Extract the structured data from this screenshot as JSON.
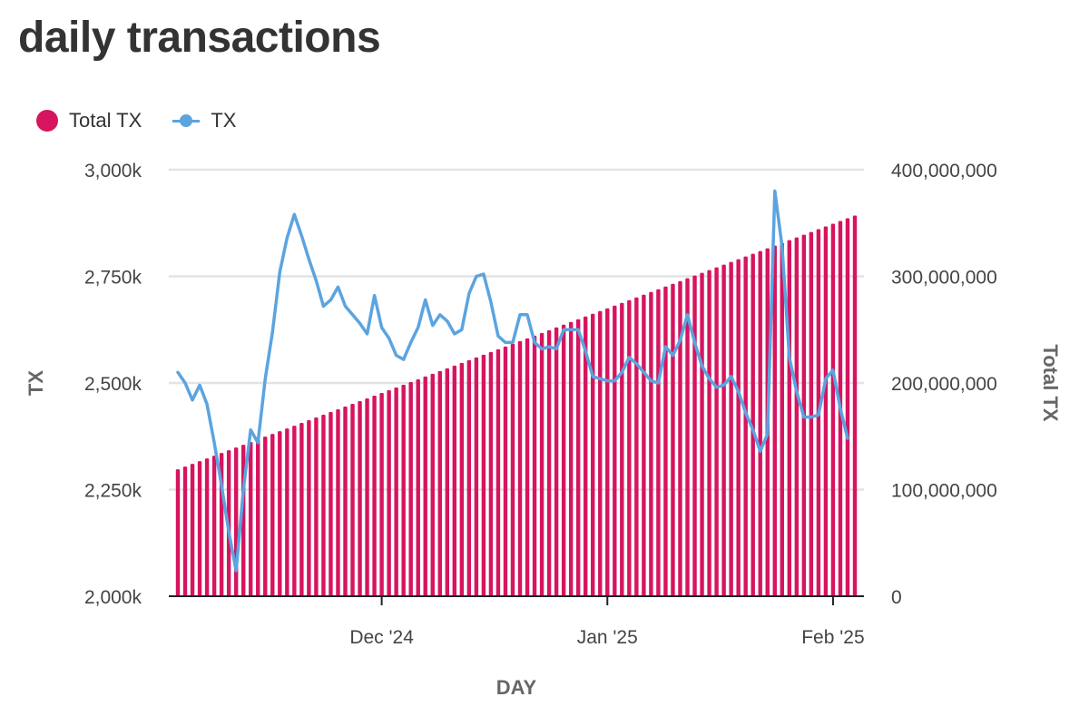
{
  "title": "daily transactions",
  "legend": {
    "total_label": "Total TX",
    "tx_label": "TX"
  },
  "colors": {
    "bars": "#d6145f",
    "line": "#5ba4e0",
    "grid": "#e3e3e3",
    "axis": "#222222",
    "text": "#444444"
  },
  "chart_data": {
    "type": "bar+line",
    "xlabel": "DAY",
    "ylabel_left": "TX",
    "ylabel_right": "Total TX",
    "y_left_range": [
      2000000,
      3000000
    ],
    "y_left_ticks": [
      {
        "value": 2000000,
        "label": "2,000k"
      },
      {
        "value": 2250000,
        "label": "2,250k"
      },
      {
        "value": 2500000,
        "label": "2,500k"
      },
      {
        "value": 2750000,
        "label": "2,750k"
      },
      {
        "value": 3000000,
        "label": "3,000k"
      }
    ],
    "y_right_range": [
      0,
      400000000
    ],
    "y_right_ticks": [
      {
        "value": 0,
        "label": "0"
      },
      {
        "value": 100000000,
        "label": "100,000,000"
      },
      {
        "value": 200000000,
        "label": "200,000,000"
      },
      {
        "value": 300000000,
        "label": "300,000,000"
      },
      {
        "value": 400000000,
        "label": "400,000,000"
      }
    ],
    "x_range": [
      "2024-11-03",
      "2025-02-05"
    ],
    "x_ticks": [
      {
        "date": "2024-12-01",
        "label": "Dec '24"
      },
      {
        "date": "2025-01-01",
        "label": "Jan '25"
      },
      {
        "date": "2025-02-01",
        "label": "Feb '25"
      }
    ],
    "grid": true,
    "legend_position": "top-left",
    "series": [
      {
        "name": "Total TX",
        "type": "bar",
        "axis": "right",
        "start_date": "2024-11-03",
        "end_date": "2025-02-04",
        "start_value": 119000000,
        "end_value": 357000000
      },
      {
        "name": "TX",
        "type": "line",
        "axis": "left",
        "points": [
          [
            "2024-11-03",
            2525000
          ],
          [
            "2024-11-04",
            2500000
          ],
          [
            "2024-11-05",
            2460000
          ],
          [
            "2024-11-06",
            2495000
          ],
          [
            "2024-11-07",
            2450000
          ],
          [
            "2024-11-08",
            2360000
          ],
          [
            "2024-11-09",
            2260000
          ],
          [
            "2024-11-10",
            2150000
          ],
          [
            "2024-11-11",
            2060000
          ],
          [
            "2024-11-12",
            2250000
          ],
          [
            "2024-11-13",
            2390000
          ],
          [
            "2024-11-14",
            2360000
          ],
          [
            "2024-11-15",
            2510000
          ],
          [
            "2024-11-16",
            2620000
          ],
          [
            "2024-11-17",
            2760000
          ],
          [
            "2024-11-18",
            2840000
          ],
          [
            "2024-11-19",
            2895000
          ],
          [
            "2024-11-20",
            2845000
          ],
          [
            "2024-11-21",
            2790000
          ],
          [
            "2024-11-22",
            2740000
          ],
          [
            "2024-11-23",
            2680000
          ],
          [
            "2024-11-24",
            2695000
          ],
          [
            "2024-11-25",
            2725000
          ],
          [
            "2024-11-26",
            2680000
          ],
          [
            "2024-11-27",
            2660000
          ],
          [
            "2024-11-28",
            2640000
          ],
          [
            "2024-11-29",
            2615000
          ],
          [
            "2024-11-30",
            2705000
          ],
          [
            "2024-12-01",
            2630000
          ],
          [
            "2024-12-02",
            2605000
          ],
          [
            "2024-12-03",
            2565000
          ],
          [
            "2024-12-04",
            2555000
          ],
          [
            "2024-12-05",
            2595000
          ],
          [
            "2024-12-06",
            2630000
          ],
          [
            "2024-12-07",
            2695000
          ],
          [
            "2024-12-08",
            2635000
          ],
          [
            "2024-12-09",
            2660000
          ],
          [
            "2024-12-10",
            2645000
          ],
          [
            "2024-12-11",
            2615000
          ],
          [
            "2024-12-12",
            2625000
          ],
          [
            "2024-12-13",
            2710000
          ],
          [
            "2024-12-14",
            2750000
          ],
          [
            "2024-12-15",
            2755000
          ],
          [
            "2024-12-16",
            2690000
          ],
          [
            "2024-12-17",
            2610000
          ],
          [
            "2024-12-18",
            2595000
          ],
          [
            "2024-12-19",
            2595000
          ],
          [
            "2024-12-20",
            2660000
          ],
          [
            "2024-12-21",
            2660000
          ],
          [
            "2024-12-22",
            2595000
          ],
          [
            "2024-12-23",
            2580000
          ],
          [
            "2024-12-24",
            2585000
          ],
          [
            "2024-12-25",
            2580000
          ],
          [
            "2024-12-26",
            2625000
          ],
          [
            "2024-12-27",
            2625000
          ],
          [
            "2024-12-28",
            2625000
          ],
          [
            "2024-12-29",
            2575000
          ],
          [
            "2024-12-30",
            2515000
          ],
          [
            "2024-12-31",
            2510000
          ],
          [
            "2025-01-01",
            2505000
          ],
          [
            "2025-01-02",
            2505000
          ],
          [
            "2025-01-03",
            2525000
          ],
          [
            "2025-01-04",
            2560000
          ],
          [
            "2025-01-05",
            2545000
          ],
          [
            "2025-01-06",
            2525000
          ],
          [
            "2025-01-07",
            2505000
          ],
          [
            "2025-01-08",
            2500000
          ],
          [
            "2025-01-09",
            2585000
          ],
          [
            "2025-01-10",
            2565000
          ],
          [
            "2025-01-11",
            2600000
          ],
          [
            "2025-01-12",
            2660000
          ],
          [
            "2025-01-13",
            2595000
          ],
          [
            "2025-01-14",
            2540000
          ],
          [
            "2025-01-15",
            2510000
          ],
          [
            "2025-01-16",
            2490000
          ],
          [
            "2025-01-17",
            2495000
          ],
          [
            "2025-01-18",
            2515000
          ],
          [
            "2025-01-19",
            2480000
          ],
          [
            "2025-01-20",
            2430000
          ],
          [
            "2025-01-21",
            2390000
          ],
          [
            "2025-01-22",
            2340000
          ],
          [
            "2025-01-23",
            2380000
          ],
          [
            "2025-01-24",
            2950000
          ],
          [
            "2025-01-25",
            2820000
          ],
          [
            "2025-01-26",
            2560000
          ],
          [
            "2025-01-27",
            2480000
          ],
          [
            "2025-01-28",
            2420000
          ],
          [
            "2025-01-29",
            2420000
          ],
          [
            "2025-01-30",
            2425000
          ],
          [
            "2025-01-31",
            2510000
          ],
          [
            "2025-02-01",
            2530000
          ],
          [
            "2025-02-02",
            2440000
          ],
          [
            "2025-02-03",
            2370000
          ]
        ]
      }
    ]
  }
}
